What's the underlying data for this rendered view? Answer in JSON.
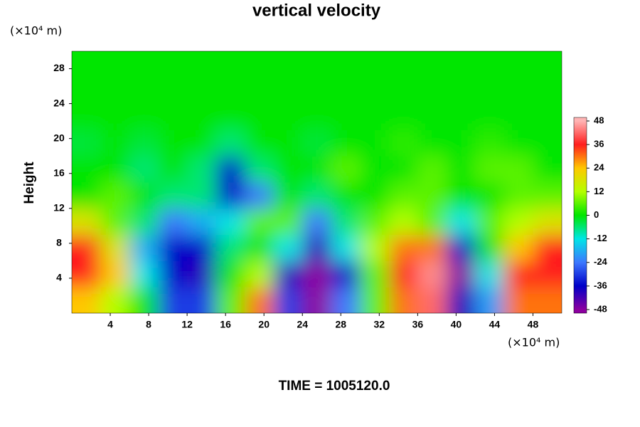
{
  "chart_data": {
    "type": "contour",
    "title": "vertical velocity",
    "y_unit_label": "(×10⁴ m)",
    "x_unit_label": "(×10⁴ m)",
    "y_label": "Height",
    "footer": "TIME = 1005120.0",
    "xlim": [
      0,
      51
    ],
    "ylim": [
      0,
      30
    ],
    "xticks": [
      4,
      8,
      12,
      16,
      20,
      24,
      28,
      32,
      36,
      40,
      44,
      48
    ],
    "yticks": [
      4,
      8,
      12,
      16,
      20,
      24,
      28
    ],
    "zticks": [
      -48,
      -36,
      -24,
      -12,
      0,
      12,
      24,
      36,
      48
    ],
    "colors": [
      "#8c00a0",
      "#0000c8",
      "#3c78ff",
      "#00e6e6",
      "#00e600",
      "#b4ff00",
      "#ffc800",
      "#ff1e1e",
      "#ffb4b4"
    ],
    "x": [
      1.5,
      4.5,
      7.5,
      10.5,
      13.5,
      16.5,
      19.5,
      22.5,
      25.5,
      28.5,
      31.5,
      34.5,
      37.5,
      40.5,
      43.5,
      46.5,
      49.5
    ],
    "y": [
      1.5,
      4.5,
      7.5,
      10.5,
      13.5,
      16.5,
      19.5,
      22.5,
      25.5,
      28.5
    ],
    "z": [
      [
        24,
        12,
        0,
        -30,
        -30,
        6,
        30,
        -30,
        -48,
        -24,
        6,
        30,
        42,
        -40,
        -20,
        30,
        30
      ],
      [
        36,
        24,
        -12,
        -36,
        -40,
        0,
        12,
        -40,
        -48,
        -36,
        6,
        36,
        45,
        -48,
        -12,
        36,
        36
      ],
      [
        36,
        18,
        -18,
        -36,
        -36,
        -6,
        0,
        -12,
        -40,
        -12,
        12,
        30,
        30,
        -36,
        0,
        24,
        36
      ],
      [
        18,
        6,
        -6,
        -24,
        -18,
        -12,
        6,
        6,
        -24,
        -6,
        6,
        12,
        6,
        -12,
        6,
        12,
        18
      ],
      [
        0,
        6,
        0,
        -6,
        -6,
        -36,
        -24,
        0,
        -6,
        0,
        0,
        6,
        6,
        0,
        0,
        6,
        6
      ],
      [
        0,
        0,
        -6,
        0,
        -6,
        -36,
        -6,
        0,
        0,
        6,
        0,
        0,
        6,
        0,
        6,
        6,
        0
      ],
      [
        -3,
        0,
        -3,
        0,
        0,
        -6,
        0,
        0,
        -3,
        0,
        0,
        3,
        0,
        0,
        3,
        0,
        0
      ],
      [
        0,
        0,
        0,
        0,
        0,
        0,
        0,
        0,
        0,
        0,
        0,
        0,
        0,
        0,
        0,
        0,
        0
      ],
      [
        0,
        0,
        0,
        0,
        0,
        0,
        0,
        0,
        0,
        0,
        0,
        0,
        0,
        0,
        0,
        0,
        0
      ],
      [
        0,
        0,
        0,
        0,
        0,
        0,
        0,
        0,
        0,
        0,
        0,
        0,
        0,
        0,
        0,
        0,
        0
      ]
    ]
  }
}
